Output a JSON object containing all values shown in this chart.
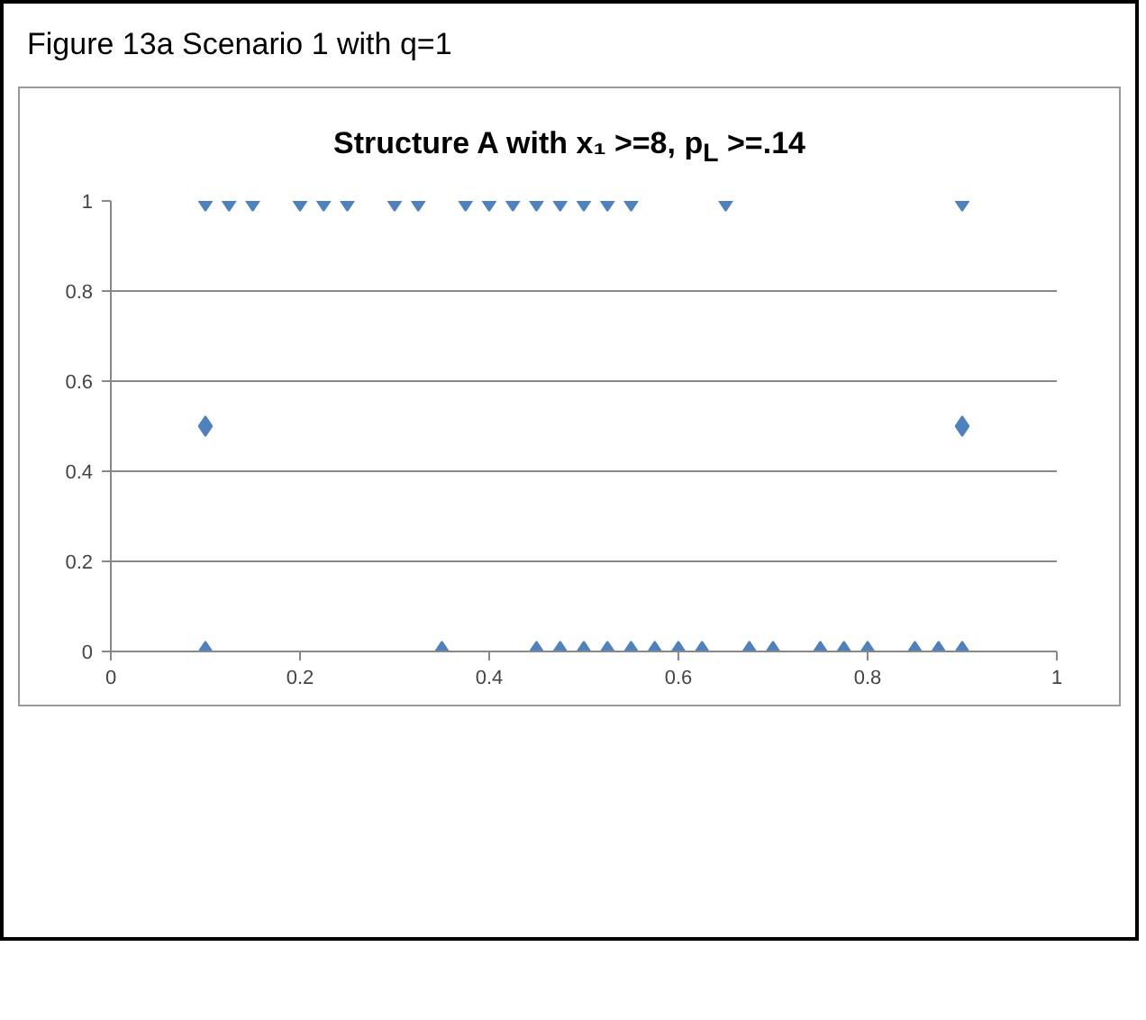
{
  "chart_data": {
    "type": "scatter",
    "title": "Figure 13a Scenario 1 with q=1",
    "subtitle": "Structure A with x₁ >=8, p$_{L}$ >=.14",
    "x": [
      0.1,
      0.125,
      0.15,
      0.2,
      0.225,
      0.25,
      0.3,
      0.325,
      0.375,
      0.4,
      0.425,
      0.45,
      0.475,
      0.5,
      0.525,
      0.55,
      0.65,
      0.9,
      0.1,
      0.9,
      0.1,
      0.35,
      0.45,
      0.475,
      0.5,
      0.525,
      0.55,
      0.575,
      0.6,
      0.625,
      0.675,
      0.7,
      0.75,
      0.775,
      0.8,
      0.85,
      0.875,
      0.9
    ],
    "series": [
      {
        "color": "#4f81bd",
        "values": [
          1,
          1,
          1,
          1,
          1,
          1,
          1,
          1,
          1,
          1,
          1,
          1,
          1,
          1,
          1,
          1,
          1,
          1,
          0.5,
          0.5,
          0,
          0,
          0,
          0,
          0,
          0,
          0,
          0,
          0,
          0,
          0,
          0,
          0,
          0,
          0,
          0,
          0,
          0
        ]
      }
    ],
    "xlim": [
      0,
      1
    ],
    "ylim": [
      0,
      1
    ],
    "xticks": [
      0,
      0.2,
      0.4,
      0.6,
      0.8,
      1
    ],
    "yticks": [
      0,
      0.2,
      0.4,
      0.6,
      0.8,
      1
    ],
    "grid": "y",
    "marker": "diamond"
  }
}
